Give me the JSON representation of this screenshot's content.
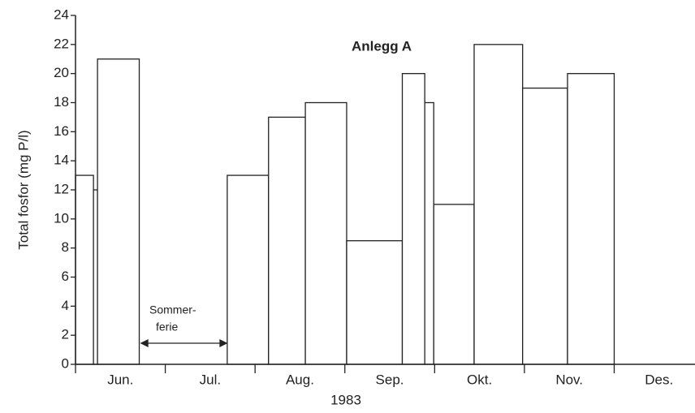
{
  "chart_data": {
    "type": "histogram",
    "title": "Anlegg A",
    "ylabel": "Total fosfor (mg P/l)",
    "xlabel": "1983",
    "categories": [
      "Jun.",
      "Jul.",
      "Aug.",
      "Sep.",
      "Okt.",
      "Nov.",
      "Des."
    ],
    "bins": [
      0,
      0.2,
      0.245,
      0.71,
      1.69,
      2.15,
      2.56,
      3.02,
      3.64,
      3.89,
      3.99,
      4.44,
      4.98,
      5.48,
      6.0
    ],
    "values": [
      13,
      12,
      21,
      null,
      13,
      17,
      18,
      8.5,
      20,
      18,
      11,
      22,
      19,
      20
    ],
    "color": "#ffffff",
    "xlim": [
      0,
      6.9
    ],
    "xticks": [
      0,
      1,
      2,
      3,
      4,
      5,
      6
    ],
    "ylim": [
      0,
      24
    ],
    "yticks": [
      0,
      2,
      4,
      6,
      8,
      10,
      12,
      14,
      16,
      18,
      20,
      22,
      24
    ],
    "annotation": [
      "Sommer-",
      "ferie"
    ]
  }
}
